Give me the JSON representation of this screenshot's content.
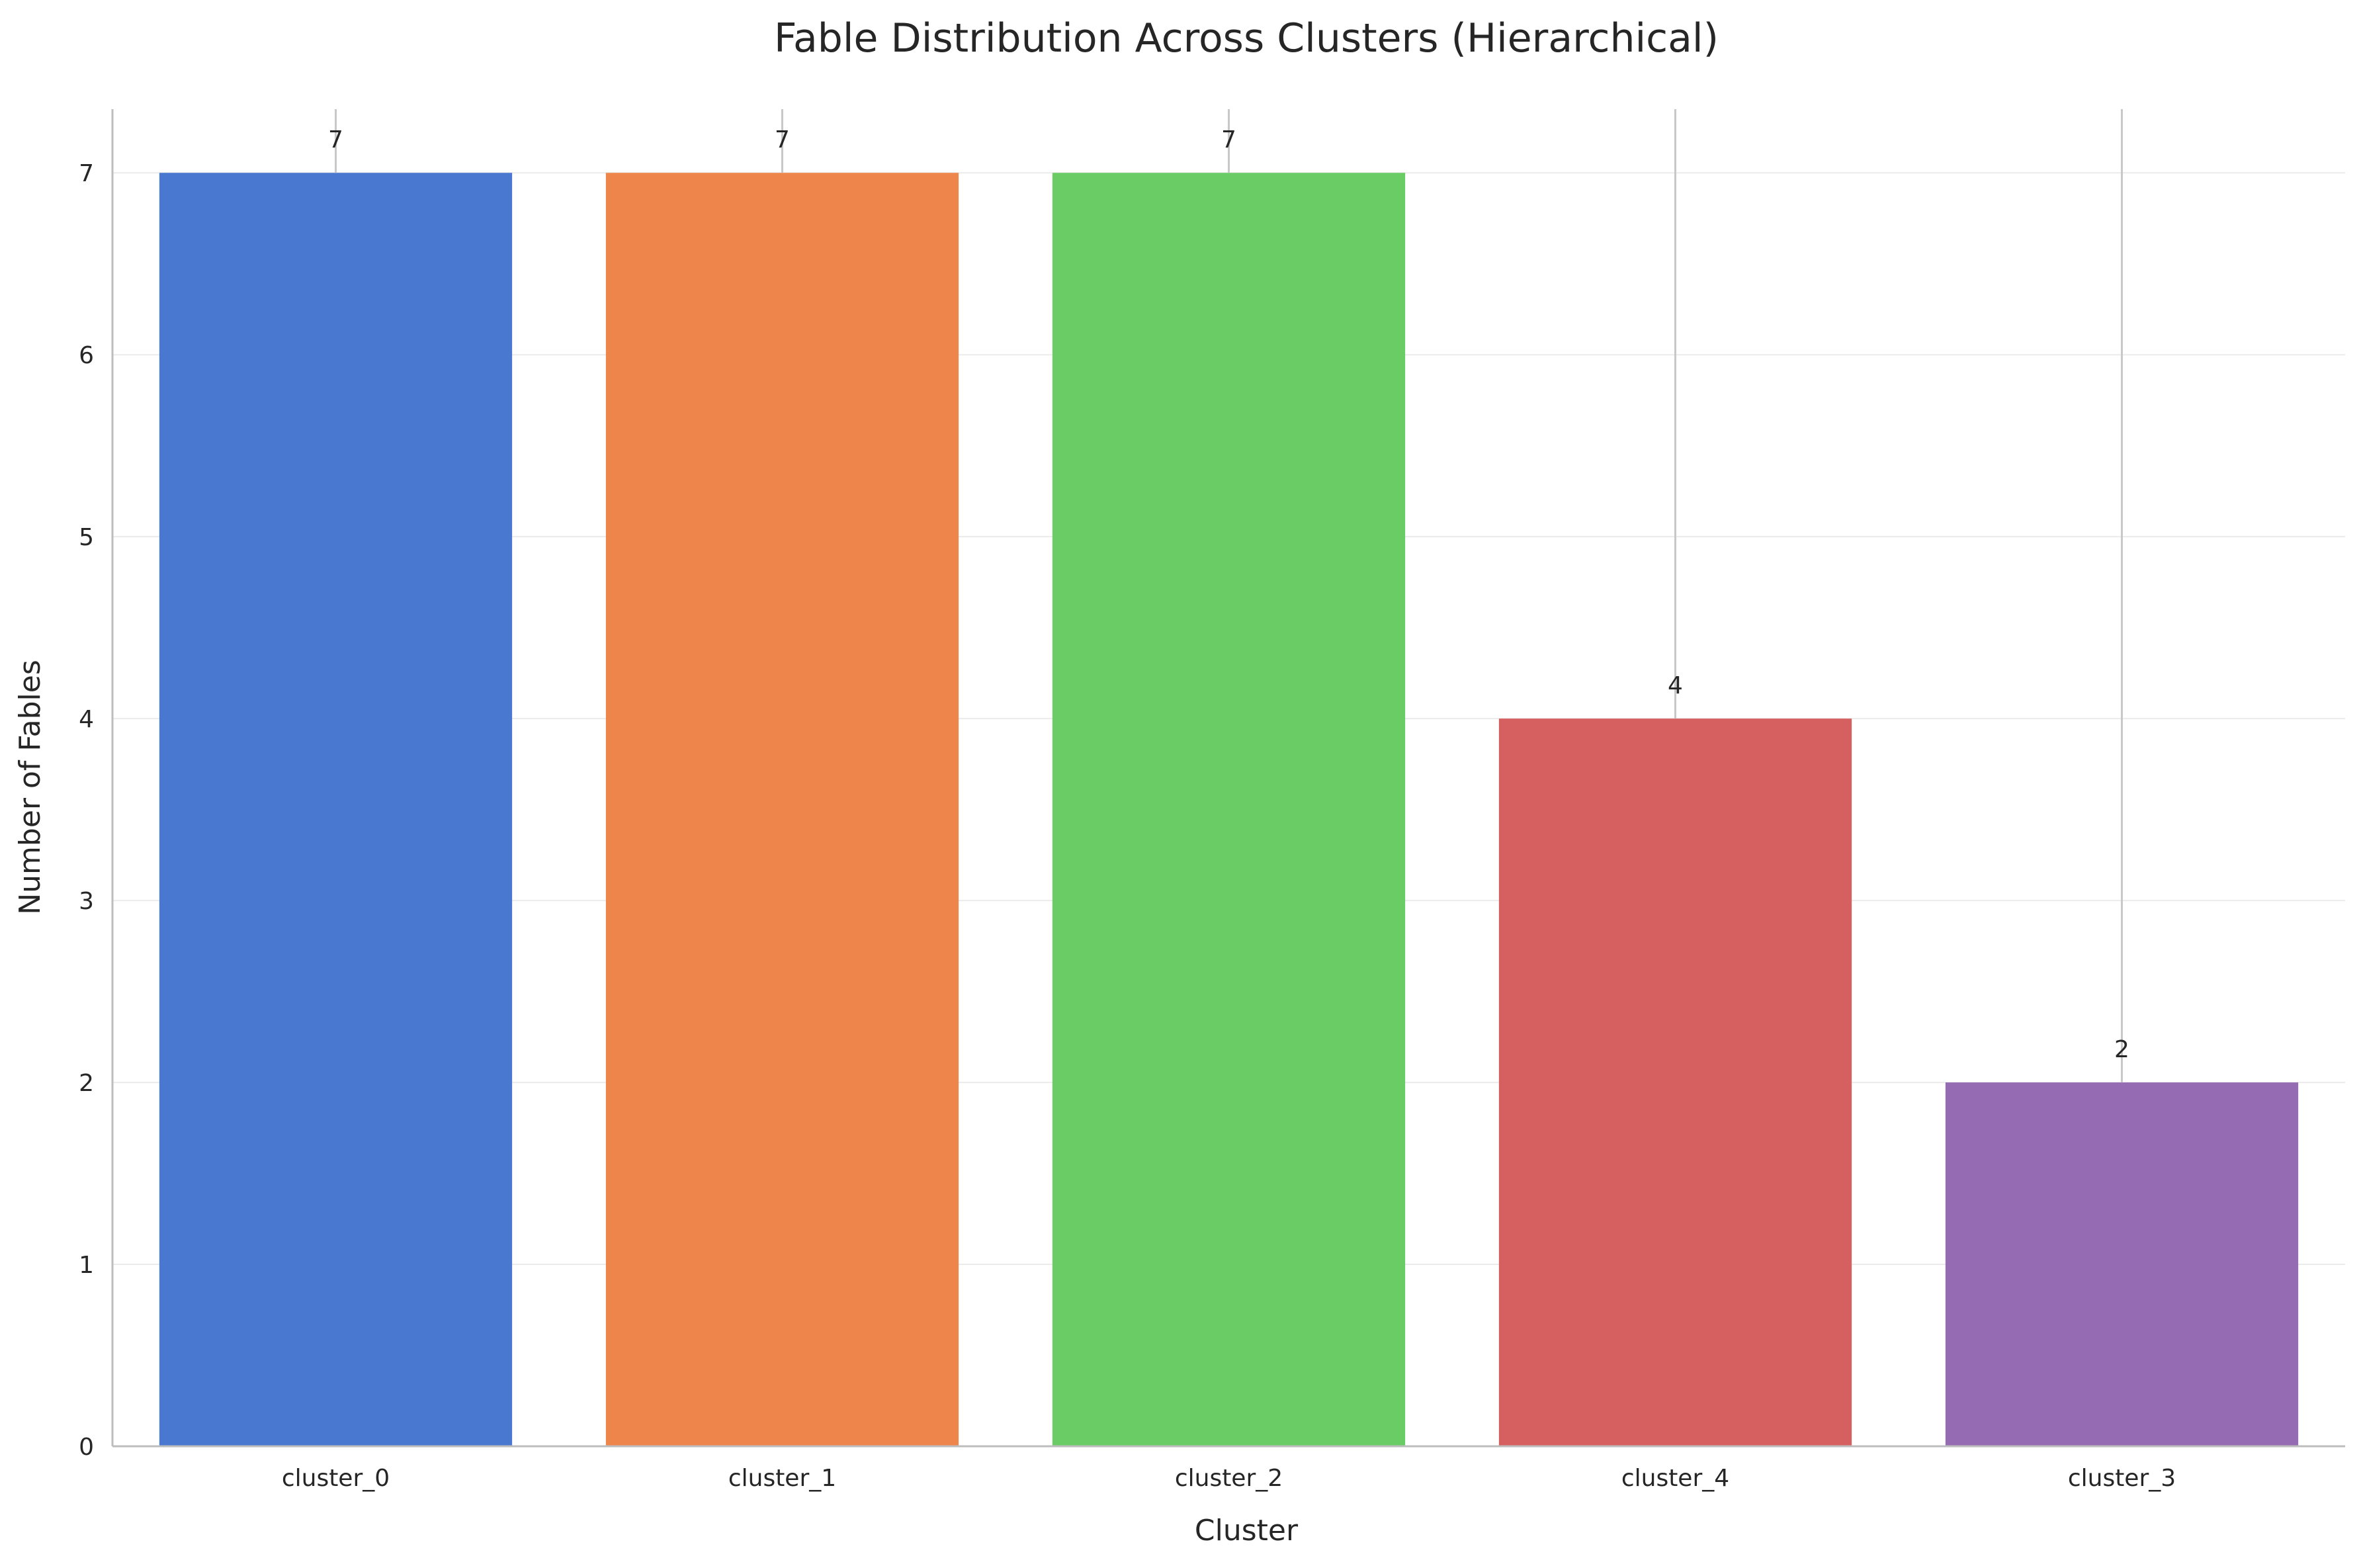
{
  "chart_data": {
    "type": "bar",
    "title": "Fable Distribution Across Clusters (Hierarchical)",
    "xlabel": "Cluster",
    "ylabel": "Number of Fables",
    "categories": [
      "cluster_0",
      "cluster_1",
      "cluster_2",
      "cluster_4",
      "cluster_3"
    ],
    "values": [
      7,
      7,
      7,
      4,
      2
    ],
    "data_labels": [
      "7",
      "7",
      "7",
      "4",
      "2"
    ],
    "error_upper": [
      7.35,
      7.35,
      7.35,
      7.35,
      7.35
    ],
    "colors": [
      "#4878d0",
      "#ee854a",
      "#6acc64",
      "#d65f5f",
      "#956cb4"
    ],
    "ylim": [
      0,
      7.35
    ],
    "yticks": [
      0,
      1,
      2,
      3,
      4,
      5,
      6,
      7
    ],
    "grid": "horizontal",
    "legend": "none"
  }
}
